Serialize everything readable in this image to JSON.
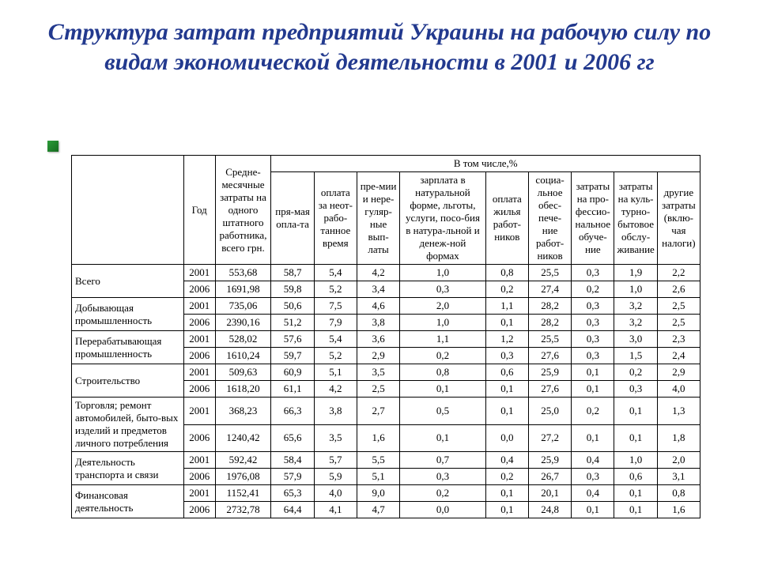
{
  "title": "Структура затрат предприятий Украины на рабочую силу по видам экономической деятельности в 2001 и 2006 гг",
  "headers": {
    "blank": "",
    "year": "Год",
    "avg_cost": "Средне-месячные затраты на одного штатного работника, всего грн.",
    "inc": "В том числе,%",
    "c1": "пря-мая опла-та",
    "c2": "оплата за неот-рабо-танное время",
    "c3": "пре-мии и нере-гуляр-ные вып-латы",
    "c4": "зарплата в натуральной форме, льготы, услуги, посо-бия в натура-льной и денеж-ной формах",
    "c5": "оплата жилья работ-ников",
    "c6": "социа-льное обес-пече-ние работ-ников",
    "c7": "затраты на про-фессио-нальное обуче-ние",
    "c8": "затраты на куль-турно-бытовое обслу-живание",
    "c9": "другие затраты (вклю-чая налоги)"
  },
  "rows": [
    {
      "label": "Всего",
      "data": [
        [
          "2001",
          "553,68",
          "58,7",
          "5,4",
          "4,2",
          "1,0",
          "0,8",
          "25,5",
          "0,3",
          "1,9",
          "2,2"
        ],
        [
          "2006",
          "1691,98",
          "59,8",
          "5,2",
          "3,4",
          "0,3",
          "0,2",
          "27,4",
          "0,2",
          "1,0",
          "2,6"
        ]
      ]
    },
    {
      "label": "Добывающая промышленность",
      "data": [
        [
          "2001",
          "735,06",
          "50,6",
          "7,5",
          "4,6",
          "2,0",
          "1,1",
          "28,2",
          "0,3",
          "3,2",
          "2,5"
        ],
        [
          "2006",
          "2390,16",
          "51,2",
          "7,9",
          "3,8",
          "1,0",
          "0,1",
          "28,2",
          "0,3",
          "3,2",
          "2,5"
        ]
      ]
    },
    {
      "label": "Перерабатывающая промышленность",
      "data": [
        [
          "2001",
          "528,02",
          "57,6",
          "5,4",
          "3,6",
          "1,1",
          "1,2",
          "25,5",
          "0,3",
          "3,0",
          "2,3"
        ],
        [
          "2006",
          "1610,24",
          "59,7",
          "5,2",
          "2,9",
          "0,2",
          "0,3",
          "27,6",
          "0,3",
          "1,5",
          "2,4"
        ]
      ]
    },
    {
      "label": "Строительство",
      "data": [
        [
          "2001",
          "509,63",
          "60,9",
          "5,1",
          "3,5",
          "0,8",
          "0,6",
          "25,9",
          "0,1",
          "0,2",
          "2,9"
        ],
        [
          "2006",
          "1618,20",
          "61,1",
          "4,2",
          "2,5",
          "0,1",
          "0,1",
          "27,6",
          "0,1",
          "0,3",
          "4,0"
        ]
      ]
    },
    {
      "label": "Торговля; ремонт автомобилей, быто-вых изделий и предметов личного потребления",
      "data": [
        [
          "2001",
          "368,23",
          "66,3",
          "3,8",
          "2,7",
          "0,5",
          "0,1",
          "25,0",
          "0,2",
          "0,1",
          "1,3"
        ],
        [
          "2006",
          "1240,42",
          "65,6",
          "3,5",
          "1,6",
          "0,1",
          "0,0",
          "27,2",
          "0,1",
          "0,1",
          "1,8"
        ]
      ]
    },
    {
      "label": "Деятельность транспорта и связи",
      "data": [
        [
          "2001",
          "592,42",
          "58,4",
          "5,7",
          "5,5",
          "0,7",
          "0,4",
          "25,9",
          "0,4",
          "1,0",
          "2,0"
        ],
        [
          "2006",
          "1976,08",
          "57,9",
          "5,9",
          "5,1",
          "0,3",
          "0,2",
          "26,7",
          "0,3",
          "0,6",
          "3,1"
        ]
      ]
    },
    {
      "label": "Финансовая деятельность",
      "data": [
        [
          "2001",
          "1152,41",
          "65,3",
          "4,0",
          "9,0",
          "0,2",
          "0,1",
          "20,1",
          "0,4",
          "0,1",
          "0,8"
        ],
        [
          "2006",
          "2732,78",
          "64,4",
          "4,1",
          "4,7",
          "0,0",
          "0,1",
          "24,8",
          "0,1",
          "0,1",
          "1,6"
        ]
      ]
    }
  ]
}
